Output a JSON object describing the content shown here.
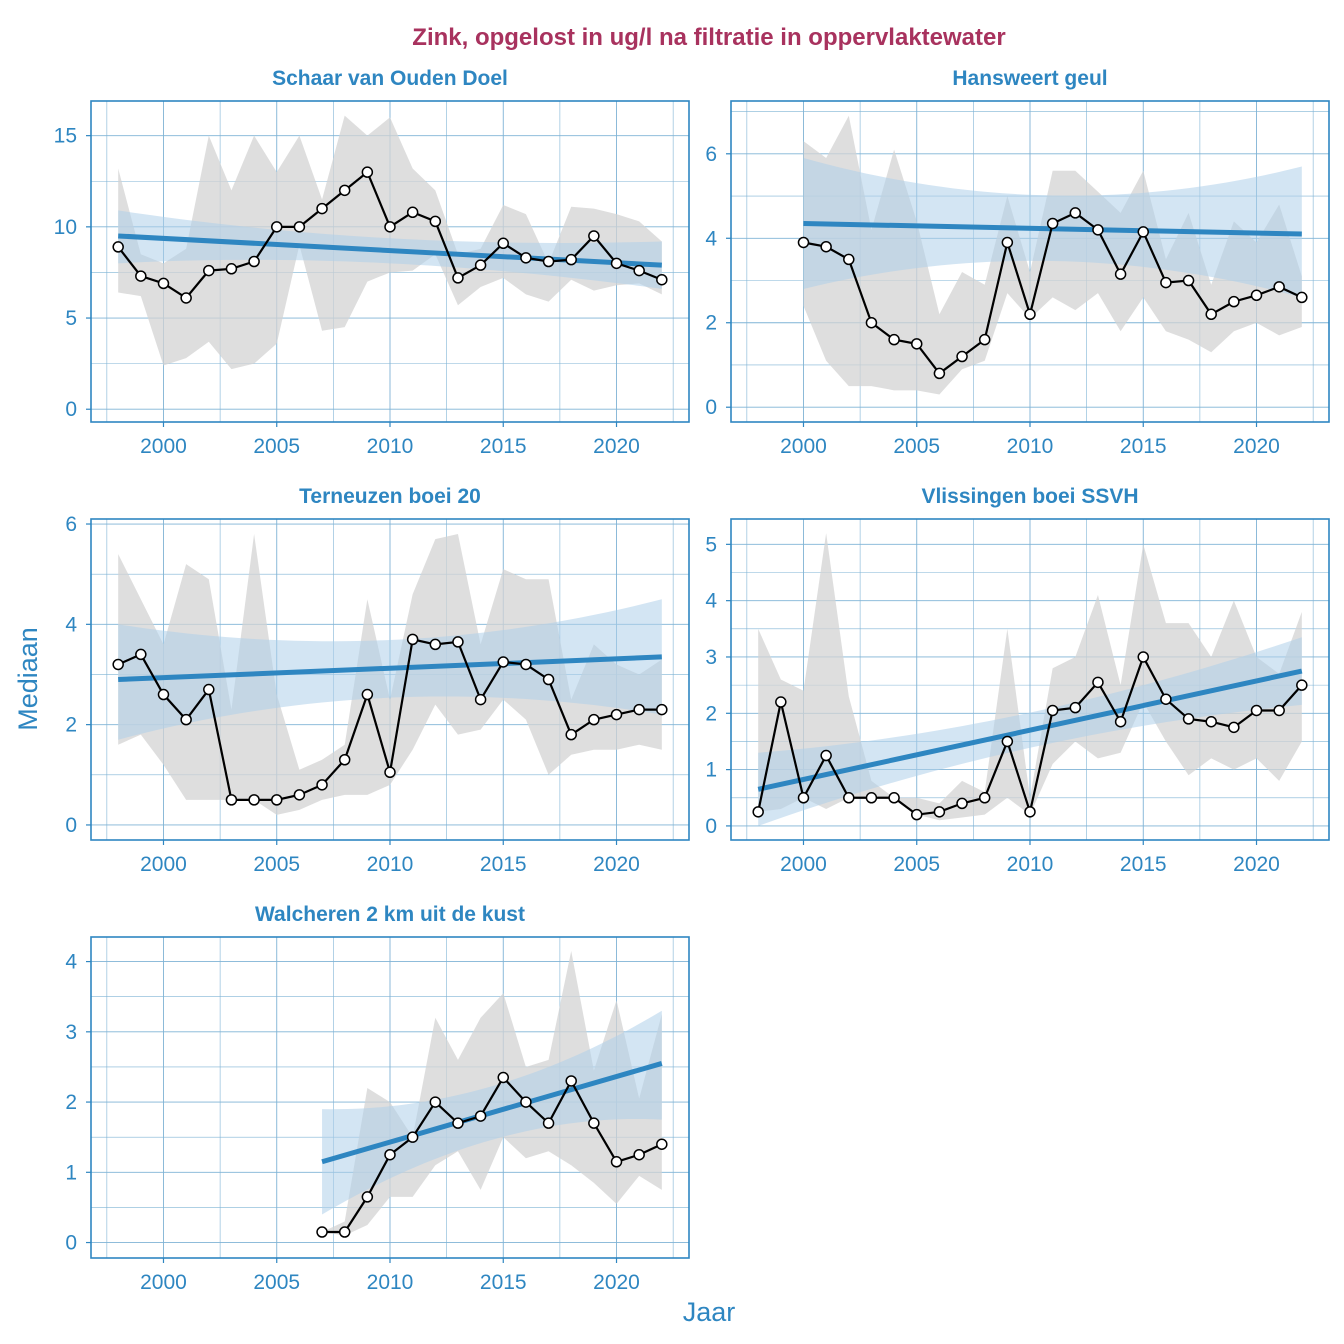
{
  "chart_data": {
    "type": "line",
    "title": "Zink, opgelost in ug/l na filtratie in oppervlaktewater",
    "xlabel": "Jaar",
    "ylabel": "Mediaan",
    "colors": {
      "title": "#A8325E",
      "accent": "#2E86C1",
      "trend_band": "#AED0EA",
      "range_band": "#D3D3D3",
      "grid": "#7FB3D5",
      "series_line": "#000000",
      "marker_fill": "#FFFFFF"
    },
    "panels": [
      {
        "title": "Schaar van Ouden Doel",
        "xlim": [
          1996.8,
          2023.2
        ],
        "ylim": [
          -0.7,
          16.9
        ],
        "xticks": [
          2000,
          2005,
          2010,
          2015,
          2020
        ],
        "yticks": [
          0,
          5,
          10,
          15
        ],
        "years": [
          1998,
          1999,
          2000,
          2001,
          2002,
          2003,
          2004,
          2005,
          2006,
          2007,
          2008,
          2009,
          2010,
          2011,
          2012,
          2013,
          2014,
          2015,
          2016,
          2017,
          2018,
          2019,
          2020,
          2021,
          2022
        ],
        "median": [
          8.9,
          7.3,
          6.9,
          6.1,
          7.6,
          7.7,
          8.1,
          10.0,
          10.0,
          11.0,
          12.0,
          13.0,
          10.0,
          10.8,
          10.3,
          7.2,
          7.9,
          9.1,
          8.3,
          8.1,
          8.2,
          9.5,
          8.0,
          7.6,
          7.1
        ],
        "range_low": [
          6.4,
          6.2,
          2.4,
          2.8,
          3.7,
          2.2,
          2.5,
          3.6,
          9.0,
          4.3,
          4.5,
          7.0,
          7.5,
          7.6,
          8.5,
          5.7,
          6.7,
          7.2,
          6.3,
          5.9,
          7.1,
          6.5,
          6.8,
          6.9,
          6.3
        ],
        "range_high": [
          13.2,
          8.5,
          8.0,
          8.8,
          15.0,
          12.0,
          15.0,
          13.0,
          15.0,
          11.5,
          16.1,
          15.0,
          16.0,
          13.2,
          12.0,
          8.5,
          8.8,
          11.2,
          10.7,
          8.0,
          11.1,
          11.0,
          10.7,
          10.3,
          9.2
        ],
        "trend": [
          9.5,
          7.9
        ],
        "trend_band_low": [
          8.0,
          6.6
        ],
        "trend_band_high": [
          10.9,
          9.2
        ]
      },
      {
        "title": "Hansweert geul",
        "xlim": [
          1996.8,
          2023.2
        ],
        "ylim": [
          -0.35,
          7.25
        ],
        "xticks": [
          2000,
          2005,
          2010,
          2015,
          2020
        ],
        "yticks": [
          0,
          2,
          4,
          6
        ],
        "years": [
          2000,
          2001,
          2002,
          2003,
          2004,
          2005,
          2006,
          2007,
          2008,
          2009,
          2010,
          2011,
          2012,
          2013,
          2014,
          2015,
          2016,
          2017,
          2018,
          2019,
          2020,
          2021,
          2022
        ],
        "median": [
          3.9,
          3.8,
          3.5,
          2.0,
          1.6,
          1.5,
          0.8,
          1.2,
          1.6,
          3.9,
          2.2,
          4.35,
          4.6,
          4.2,
          3.15,
          4.15,
          2.95,
          3.0,
          2.2,
          2.5,
          2.65,
          2.85,
          2.6
        ],
        "range_low": [
          2.4,
          1.1,
          0.5,
          0.5,
          0.4,
          0.4,
          0.3,
          0.9,
          1.1,
          2.7,
          2.1,
          2.6,
          2.3,
          2.7,
          1.8,
          2.6,
          1.8,
          1.6,
          1.3,
          1.8,
          2.0,
          1.7,
          1.9
        ],
        "range_high": [
          6.3,
          5.9,
          6.9,
          4.2,
          6.1,
          4.4,
          2.2,
          3.2,
          2.9,
          5.0,
          3.2,
          5.6,
          5.6,
          5.1,
          4.6,
          5.6,
          3.5,
          4.6,
          2.9,
          4.4,
          3.9,
          4.8,
          3.1
        ],
        "trend": [
          4.35,
          4.1
        ],
        "trend_band_low": [
          2.8,
          2.6
        ],
        "trend_band_high": [
          5.9,
          5.7
        ]
      },
      {
        "title": "Terneuzen boei 20",
        "xlim": [
          1996.8,
          2023.2
        ],
        "ylim": [
          -0.3,
          6.1
        ],
        "xticks": [
          2000,
          2005,
          2010,
          2015,
          2020
        ],
        "yticks": [
          0,
          2,
          4,
          6
        ],
        "years": [
          1998,
          1999,
          2000,
          2001,
          2002,
          2003,
          2004,
          2005,
          2006,
          2007,
          2008,
          2009,
          2010,
          2011,
          2012,
          2013,
          2014,
          2015,
          2016,
          2017,
          2018,
          2019,
          2020,
          2021,
          2022
        ],
        "median": [
          3.2,
          3.4,
          2.6,
          2.1,
          2.7,
          0.5,
          0.5,
          0.5,
          0.6,
          0.8,
          1.3,
          2.6,
          1.05,
          3.7,
          3.6,
          3.65,
          2.5,
          3.25,
          3.2,
          2.9,
          1.8,
          2.1,
          2.2,
          2.3,
          2.3
        ],
        "range_low": [
          1.6,
          1.8,
          1.2,
          0.5,
          0.5,
          0.5,
          0.5,
          0.2,
          0.3,
          0.5,
          0.6,
          0.6,
          0.8,
          1.5,
          2.4,
          1.8,
          1.9,
          2.5,
          2.1,
          1.0,
          1.4,
          1.5,
          1.5,
          1.6,
          1.5
        ],
        "range_high": [
          5.4,
          4.5,
          3.6,
          5.2,
          4.9,
          2.3,
          5.8,
          2.6,
          1.1,
          1.3,
          1.6,
          4.5,
          2.5,
          4.6,
          5.7,
          5.8,
          3.6,
          5.1,
          4.9,
          4.9,
          2.5,
          3.6,
          3.2,
          3.0,
          3.3
        ],
        "trend": [
          2.9,
          3.35
        ],
        "trend_band_low": [
          1.7,
          2.2
        ],
        "trend_band_high": [
          4.0,
          4.5
        ]
      },
      {
        "title": "Vlissingen boei SSVH",
        "xlim": [
          1996.8,
          2023.2
        ],
        "ylim": [
          -0.25,
          5.45
        ],
        "xticks": [
          2000,
          2005,
          2010,
          2015,
          2020
        ],
        "yticks": [
          0,
          1,
          2,
          3,
          4,
          5
        ],
        "years": [
          1998,
          1999,
          2000,
          2001,
          2002,
          2003,
          2004,
          2005,
          2006,
          2007,
          2008,
          2009,
          2010,
          2011,
          2012,
          2013,
          2014,
          2015,
          2016,
          2017,
          2018,
          2019,
          2020,
          2021,
          2022
        ],
        "median": [
          0.25,
          2.2,
          0.5,
          1.25,
          0.5,
          0.5,
          0.5,
          0.2,
          0.25,
          0.4,
          0.5,
          1.5,
          0.25,
          2.05,
          2.1,
          2.55,
          1.85,
          3.0,
          2.25,
          1.9,
          1.85,
          1.75,
          2.05,
          2.05,
          2.5
        ],
        "range_low": [
          0.25,
          0.3,
          0.5,
          0.3,
          0.5,
          0.5,
          0.5,
          0.2,
          0.1,
          0.15,
          0.2,
          0.5,
          0.2,
          1.1,
          1.5,
          1.2,
          1.3,
          2.2,
          1.5,
          0.9,
          1.2,
          1.0,
          1.2,
          0.8,
          1.5
        ],
        "range_high": [
          3.5,
          2.6,
          2.4,
          5.2,
          2.3,
          0.8,
          0.5,
          0.5,
          0.4,
          0.8,
          0.6,
          3.5,
          0.5,
          2.8,
          3.0,
          4.1,
          2.5,
          5.0,
          3.6,
          3.6,
          3.0,
          4.0,
          3.0,
          2.7,
          3.8
        ],
        "trend": [
          0.65,
          2.75
        ],
        "trend_band_low": [
          0.0,
          2.15
        ],
        "trend_band_high": [
          1.3,
          3.35
        ]
      },
      {
        "title": "Walcheren 2 km uit de kust",
        "xlim": [
          1996.8,
          2023.2
        ],
        "ylim": [
          -0.22,
          4.35
        ],
        "xticks": [
          2000,
          2005,
          2010,
          2015,
          2020
        ],
        "yticks": [
          0,
          1,
          2,
          3,
          4
        ],
        "years": [
          2007,
          2008,
          2009,
          2010,
          2011,
          2012,
          2013,
          2014,
          2015,
          2016,
          2017,
          2018,
          2019,
          2020,
          2021,
          2022
        ],
        "median": [
          0.15,
          0.15,
          0.65,
          1.25,
          1.5,
          2.0,
          1.7,
          1.8,
          2.35,
          2.0,
          1.7,
          2.3,
          1.7,
          1.15,
          1.25,
          1.4
        ],
        "range_low": [
          0.15,
          0.1,
          0.25,
          0.65,
          0.65,
          1.1,
          1.3,
          0.75,
          1.5,
          1.2,
          1.3,
          1.1,
          0.85,
          0.55,
          0.95,
          0.75
        ],
        "range_high": [
          0.15,
          0.3,
          2.2,
          2.0,
          1.5,
          3.2,
          2.6,
          3.2,
          3.55,
          2.5,
          2.6,
          4.15,
          2.45,
          3.45,
          2.05,
          3.25
        ],
        "trend": [
          1.15,
          2.55
        ],
        "trend_band_low": [
          0.4,
          1.75
        ],
        "trend_band_high": [
          1.9,
          3.3
        ]
      }
    ]
  }
}
